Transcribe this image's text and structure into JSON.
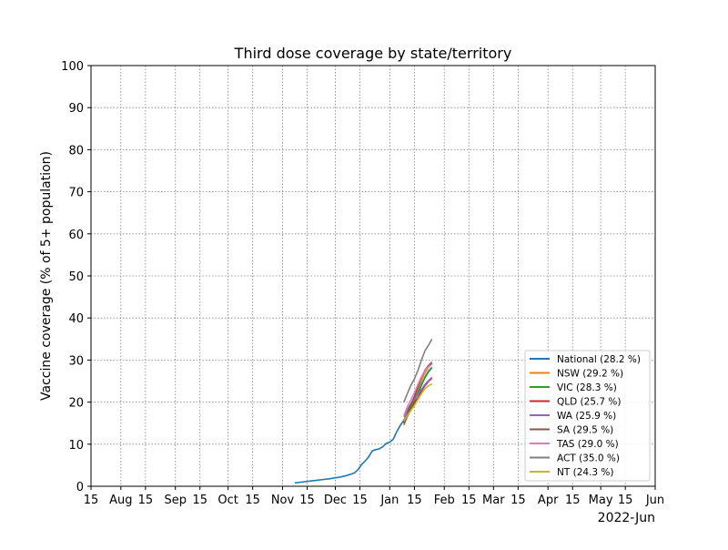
{
  "chart_data": {
    "type": "line",
    "title": "Third dose coverage by state/territory",
    "xlabel": "",
    "ylabel": "Vaccine coverage (% of 5+ population)",
    "x_offset_label": "2022-Jun",
    "xlim": [
      "2021-07-15",
      "2022-06-01"
    ],
    "ylim": [
      0,
      100
    ],
    "yticks": [
      0,
      10,
      20,
      30,
      40,
      50,
      60,
      70,
      80,
      90,
      100
    ],
    "yticklabels": [
      "0",
      "10",
      "20",
      "30",
      "40",
      "50",
      "60",
      "70",
      "80",
      "90",
      "100"
    ],
    "xticks": [
      {
        "date": "2021-07-15",
        "label": "15"
      },
      {
        "date": "2021-08-01",
        "label": "Aug"
      },
      {
        "date": "2021-08-15",
        "label": "15"
      },
      {
        "date": "2021-09-01",
        "label": "Sep"
      },
      {
        "date": "2021-09-15",
        "label": "15"
      },
      {
        "date": "2021-10-01",
        "label": "Oct"
      },
      {
        "date": "2021-10-15",
        "label": "15"
      },
      {
        "date": "2021-11-01",
        "label": "Nov"
      },
      {
        "date": "2021-11-15",
        "label": "15"
      },
      {
        "date": "2021-12-01",
        "label": "Dec"
      },
      {
        "date": "2021-12-15",
        "label": "15"
      },
      {
        "date": "2022-01-01",
        "label": "Jan"
      },
      {
        "date": "2022-01-15",
        "label": "15"
      },
      {
        "date": "2022-02-01",
        "label": "Feb"
      },
      {
        "date": "2022-02-15",
        "label": "15"
      },
      {
        "date": "2022-03-01",
        "label": "Mar"
      },
      {
        "date": "2022-03-15",
        "label": "15"
      },
      {
        "date": "2022-04-01",
        "label": "Apr"
      },
      {
        "date": "2022-04-15",
        "label": "15"
      },
      {
        "date": "2022-05-01",
        "label": "May"
      },
      {
        "date": "2022-05-15",
        "label": "15"
      },
      {
        "date": "2022-06-01",
        "label": "Jun"
      }
    ],
    "grid": true,
    "legend_position": "lower right",
    "series": [
      {
        "name": "National (28.2 %)",
        "color": "#1f77b4",
        "points": [
          [
            "2021-11-08",
            0.8
          ],
          [
            "2021-11-12",
            1.0
          ],
          [
            "2021-11-16",
            1.2
          ],
          [
            "2021-11-20",
            1.4
          ],
          [
            "2021-11-24",
            1.6
          ],
          [
            "2021-11-28",
            1.8
          ],
          [
            "2021-12-01",
            2.0
          ],
          [
            "2021-12-04",
            2.2
          ],
          [
            "2021-12-07",
            2.5
          ],
          [
            "2021-12-10",
            2.9
          ],
          [
            "2021-12-12",
            3.2
          ],
          [
            "2021-12-14",
            4.0
          ],
          [
            "2021-12-16",
            5.2
          ],
          [
            "2021-12-18",
            6.0
          ],
          [
            "2021-12-20",
            7.0
          ],
          [
            "2021-12-22",
            8.4
          ],
          [
            "2021-12-24",
            8.7
          ],
          [
            "2021-12-26",
            8.9
          ],
          [
            "2021-12-28",
            9.4
          ],
          [
            "2021-12-30",
            10.2
          ],
          [
            "2022-01-01",
            10.5
          ],
          [
            "2022-01-03",
            11.2
          ],
          [
            "2022-01-05",
            13.0
          ],
          [
            "2022-01-07",
            14.5
          ],
          [
            "2022-01-09",
            15.7
          ],
          [
            "2022-01-11",
            17.3
          ],
          [
            "2022-01-13",
            18.8
          ],
          [
            "2022-01-15",
            20.3
          ],
          [
            "2022-01-17",
            22.0
          ],
          [
            "2022-01-19",
            24.0
          ],
          [
            "2022-01-21",
            25.8
          ],
          [
            "2022-01-23",
            27.2
          ],
          [
            "2022-01-25",
            28.2
          ]
        ]
      },
      {
        "name": "NSW (29.2 %)",
        "color": "#ff7f0e",
        "points": [
          [
            "2022-01-09",
            14.5
          ],
          [
            "2022-01-11",
            16.8
          ],
          [
            "2022-01-13",
            19.0
          ],
          [
            "2022-01-15",
            21.0
          ],
          [
            "2022-01-17",
            23.2
          ],
          [
            "2022-01-19",
            25.3
          ],
          [
            "2022-01-21",
            27.0
          ],
          [
            "2022-01-23",
            28.3
          ],
          [
            "2022-01-25",
            29.2
          ]
        ]
      },
      {
        "name": "VIC (28.3 %)",
        "color": "#2ca02c",
        "points": [
          [
            "2022-01-09",
            14.8
          ],
          [
            "2022-01-11",
            16.9
          ],
          [
            "2022-01-13",
            18.9
          ],
          [
            "2022-01-15",
            20.5
          ],
          [
            "2022-01-17",
            22.3
          ],
          [
            "2022-01-19",
            24.3
          ],
          [
            "2022-01-21",
            26.0
          ],
          [
            "2022-01-23",
            27.4
          ],
          [
            "2022-01-25",
            28.3
          ]
        ]
      },
      {
        "name": "QLD (25.7 %)",
        "color": "#d62728",
        "points": [
          [
            "2022-01-09",
            14.9
          ],
          [
            "2022-01-11",
            16.6
          ],
          [
            "2022-01-13",
            18.2
          ],
          [
            "2022-01-15",
            19.8
          ],
          [
            "2022-01-17",
            21.0
          ],
          [
            "2022-01-19",
            22.6
          ],
          [
            "2022-01-21",
            23.9
          ],
          [
            "2022-01-23",
            24.9
          ],
          [
            "2022-01-25",
            25.7
          ]
        ]
      },
      {
        "name": "WA (25.9 %)",
        "color": "#9467bd",
        "points": [
          [
            "2022-01-09",
            16.5
          ],
          [
            "2022-01-11",
            18.2
          ],
          [
            "2022-01-13",
            19.6
          ],
          [
            "2022-01-15",
            20.7
          ],
          [
            "2022-01-17",
            21.8
          ],
          [
            "2022-01-19",
            23.0
          ],
          [
            "2022-01-21",
            24.2
          ],
          [
            "2022-01-23",
            25.1
          ],
          [
            "2022-01-25",
            25.9
          ]
        ]
      },
      {
        "name": "SA (29.5 %)",
        "color": "#8c564b",
        "points": [
          [
            "2022-01-09",
            15.2
          ],
          [
            "2022-01-11",
            17.4
          ],
          [
            "2022-01-13",
            19.5
          ],
          [
            "2022-01-15",
            21.3
          ],
          [
            "2022-01-17",
            23.6
          ],
          [
            "2022-01-19",
            25.8
          ],
          [
            "2022-01-21",
            27.6
          ],
          [
            "2022-01-23",
            28.7
          ],
          [
            "2022-01-25",
            29.5
          ]
        ]
      },
      {
        "name": "TAS (29.0 %)",
        "color": "#e377c2",
        "points": [
          [
            "2022-01-09",
            16.8
          ],
          [
            "2022-01-11",
            18.9
          ],
          [
            "2022-01-13",
            20.6
          ],
          [
            "2022-01-15",
            22.2
          ],
          [
            "2022-01-17",
            24.2
          ],
          [
            "2022-01-19",
            26.0
          ],
          [
            "2022-01-21",
            27.5
          ],
          [
            "2022-01-23",
            28.4
          ],
          [
            "2022-01-25",
            29.0
          ]
        ]
      },
      {
        "name": "ACT (35.0 %)",
        "color": "#7f7f7f",
        "points": [
          [
            "2022-01-09",
            20.0
          ],
          [
            "2022-01-11",
            22.0
          ],
          [
            "2022-01-13",
            24.0
          ],
          [
            "2022-01-15",
            25.5
          ],
          [
            "2022-01-17",
            27.5
          ],
          [
            "2022-01-19",
            30.0
          ],
          [
            "2022-01-21",
            32.2
          ],
          [
            "2022-01-23",
            33.5
          ],
          [
            "2022-01-25",
            35.0
          ]
        ]
      },
      {
        "name": "NT (24.3 %)",
        "color": "#bcbd22",
        "points": [
          [
            "2022-01-09",
            15.5
          ],
          [
            "2022-01-11",
            16.8
          ],
          [
            "2022-01-13",
            18.0
          ],
          [
            "2022-01-15",
            19.2
          ],
          [
            "2022-01-17",
            20.6
          ],
          [
            "2022-01-19",
            22.0
          ],
          [
            "2022-01-21",
            23.2
          ],
          [
            "2022-01-23",
            23.9
          ],
          [
            "2022-01-25",
            24.3
          ]
        ]
      }
    ]
  }
}
